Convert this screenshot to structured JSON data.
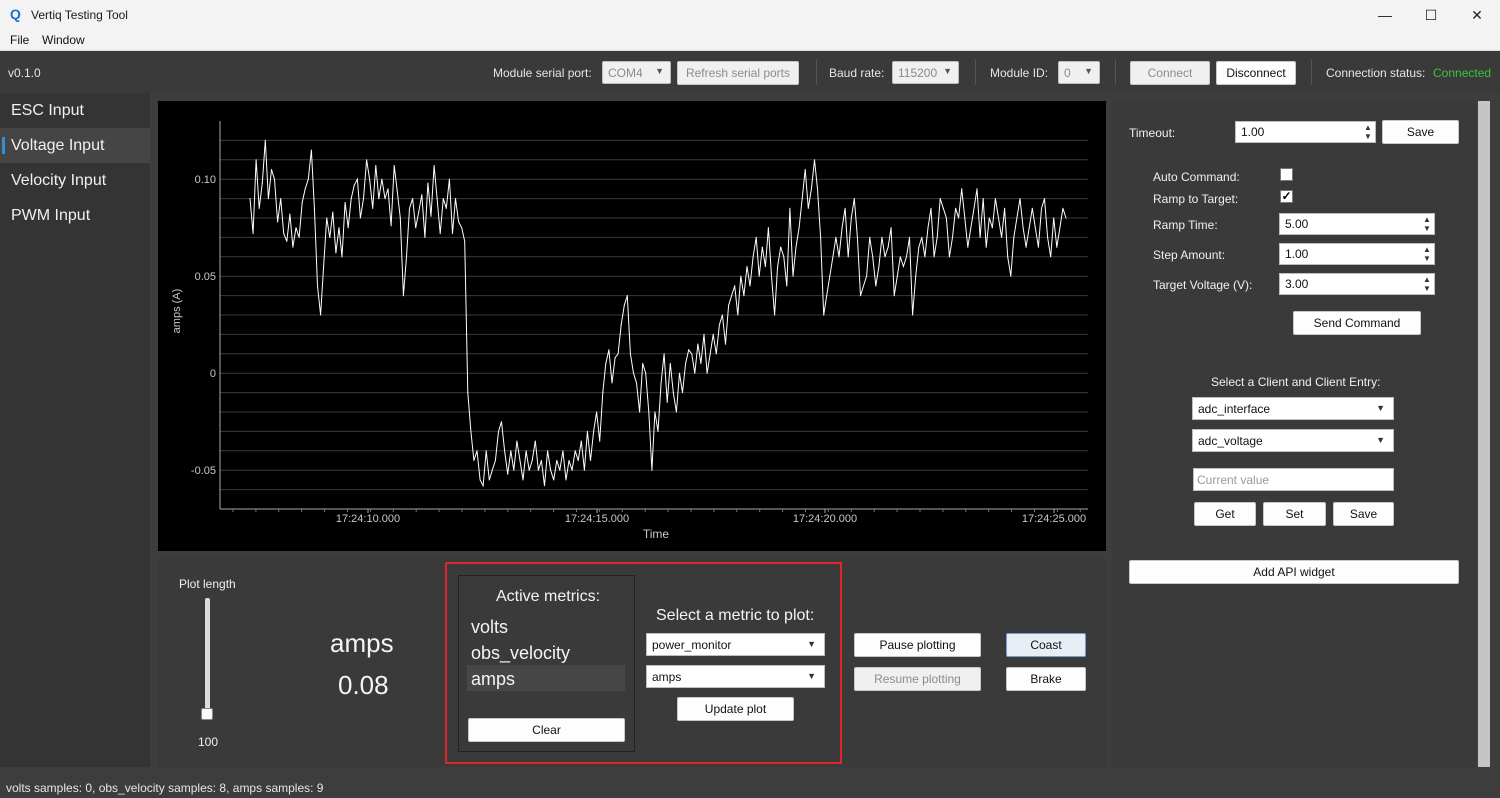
{
  "window": {
    "title": "Vertiq Testing Tool",
    "logo_glyph": "Q",
    "minimize": "—",
    "maximize": "☐",
    "close": "✕"
  },
  "menu": {
    "file": "File",
    "window": "Window"
  },
  "toolbar": {
    "version": "v0.1.0",
    "serial_port_label": "Module serial port:",
    "serial_port_value": "COM4",
    "refresh_label": "Refresh serial ports",
    "baud_label": "Baud rate:",
    "baud_value": "115200",
    "module_id_label": "Module ID:",
    "module_id_value": "0",
    "connect_label": "Connect",
    "disconnect_label": "Disconnect",
    "status_label": "Connection status:",
    "status_value": "Connected",
    "status_color": "#3cc23c"
  },
  "sidebar": {
    "items": [
      {
        "label": "ESC Input"
      },
      {
        "label": "Voltage Input"
      },
      {
        "label": "Velocity Input"
      },
      {
        "label": "PWM Input"
      }
    ],
    "active_index": 1,
    "accent": "#2f8fd8"
  },
  "chart_data": {
    "type": "line",
    "xlabel": "Time",
    "ylabel": "amps (A)",
    "xticks": [
      "17:24:10.000",
      "17:24:15.000",
      "17:24:20.000",
      "17:24:25.000"
    ],
    "yticks": [
      "0.10",
      "0.05",
      "0",
      "-0.05"
    ],
    "ylim": [
      -0.07,
      0.13
    ],
    "grid": true,
    "background": "#000000",
    "line_color": "#ffffff",
    "series": [
      {
        "values": [
          0.09,
          0.072,
          0.11,
          0.085,
          0.098,
          0.12,
          0.09,
          0.105,
          0.1,
          0.078,
          0.09,
          0.072,
          0.068,
          0.082,
          0.065,
          0.075,
          0.07,
          0.088,
          0.095,
          0.1,
          0.115,
          0.085,
          0.045,
          0.03,
          0.055,
          0.08,
          0.07,
          0.083,
          0.062,
          0.075,
          0.06,
          0.088,
          0.075,
          0.09,
          0.097,
          0.1,
          0.08,
          0.09,
          0.11,
          0.1,
          0.085,
          0.107,
          0.09,
          0.1,
          0.09,
          0.095,
          0.076,
          0.107,
          0.094,
          0.08,
          0.04,
          0.06,
          0.085,
          0.09,
          0.075,
          0.083,
          0.092,
          0.07,
          0.098,
          0.081,
          0.107,
          0.09,
          0.072,
          0.09,
          0.085,
          0.1,
          0.072,
          0.09,
          0.078,
          0.075,
          0.068,
          -0.01,
          -0.03,
          -0.045,
          -0.04,
          -0.055,
          -0.058,
          -0.04,
          -0.055,
          -0.05,
          -0.045,
          -0.03,
          -0.025,
          -0.04,
          -0.052,
          -0.04,
          -0.05,
          -0.035,
          -0.045,
          -0.055,
          -0.04,
          -0.05,
          -0.045,
          -0.035,
          -0.05,
          -0.045,
          -0.058,
          -0.04,
          -0.05,
          -0.055,
          -0.045,
          -0.05,
          -0.04,
          -0.055,
          -0.045,
          -0.05,
          -0.04,
          -0.045,
          -0.035,
          -0.05,
          -0.03,
          -0.045,
          -0.03,
          -0.02,
          -0.035,
          -0.01,
          0.005,
          0.012,
          -0.005,
          0.008,
          0.01,
          0.025,
          0.035,
          0.04,
          0.01,
          0.0,
          -0.005,
          -0.02,
          0.005,
          0.0,
          -0.02,
          -0.05,
          -0.02,
          -0.03,
          -0.005,
          0.01,
          -0.015,
          0.005,
          -0.01,
          -0.02,
          0.0,
          -0.01,
          0.005,
          0.012,
          0.01,
          0.0,
          0.015,
          0.005,
          0.02,
          0.0,
          0.01,
          0.02,
          0.01,
          0.025,
          0.03,
          0.015,
          0.035,
          0.04,
          0.045,
          0.03,
          0.05,
          0.04,
          0.055,
          0.045,
          0.06,
          0.07,
          0.05,
          0.065,
          0.055,
          0.075,
          0.05,
          0.03,
          0.055,
          0.065,
          0.06,
          0.045,
          0.085,
          0.05,
          0.065,
          0.075,
          0.09,
          0.105,
          0.085,
          0.095,
          0.11,
          0.095,
          0.07,
          0.03,
          0.04,
          0.05,
          0.06,
          0.07,
          0.06,
          0.075,
          0.085,
          0.06,
          0.08,
          0.09,
          0.07,
          0.04,
          0.045,
          0.05,
          0.07,
          0.06,
          0.045,
          0.055,
          0.07,
          0.06,
          0.065,
          0.075,
          0.04,
          0.05,
          0.06,
          0.055,
          0.06,
          0.07,
          0.03,
          0.05,
          0.065,
          0.07,
          0.06,
          0.075,
          0.085,
          0.06,
          0.07,
          0.09,
          0.085,
          0.08,
          0.06,
          0.07,
          0.085,
          0.08,
          0.095,
          0.08,
          0.065,
          0.075,
          0.085,
          0.095,
          0.07,
          0.09,
          0.065,
          0.08,
          0.075,
          0.09,
          0.08,
          0.07,
          0.085,
          0.06,
          0.05,
          0.07,
          0.08,
          0.09,
          0.075,
          0.065,
          0.075,
          0.085,
          0.075,
          0.065,
          0.085,
          0.09,
          0.07,
          0.06,
          0.08,
          0.065,
          0.075,
          0.085,
          0.08
        ]
      }
    ]
  },
  "bottom": {
    "plot_length_label": "Plot length",
    "plot_length_value": "100",
    "plot_length_fraction": 0.1,
    "metric_name": "amps",
    "metric_value": "0.08",
    "active_metrics_title": "Active metrics:",
    "active_metrics": [
      "volts",
      "obs_velocity",
      "amps"
    ],
    "clear_label": "Clear",
    "select_metric_title": "Select a metric to plot:",
    "client_select": "power_monitor",
    "entry_select": "amps",
    "update_plot_label": "Update plot",
    "pause_label": "Pause plotting",
    "resume_label": "Resume plotting",
    "coast_label": "Coast",
    "brake_label": "Brake"
  },
  "right": {
    "timeout_label": "Timeout:",
    "timeout_value": "1.00",
    "save_label": "Save",
    "auto_command_label": "Auto Command:",
    "auto_command_checked": false,
    "ramp_target_label": "Ramp to Target:",
    "ramp_target_checked": true,
    "check_glyph": "✓",
    "ramp_time_label": "Ramp Time:",
    "ramp_time_value": "5.00",
    "step_amount_label": "Step Amount:",
    "step_amount_value": "1.00",
    "target_voltage_label": "Target Voltage (V):",
    "target_voltage_value": "3.00",
    "send_command_label": "Send Command",
    "client_entry_title": "Select a Client and Client Entry:",
    "client_value": "adc_interface",
    "entry_value": "adc_voltage",
    "current_value_placeholder": "Current value",
    "get_label": "Get",
    "set_label": "Set",
    "save2_label": "Save",
    "add_widget_label": "Add API widget"
  },
  "statusbar": {
    "text": "volts samples: 0, obs_velocity samples: 8, amps samples: 9"
  }
}
